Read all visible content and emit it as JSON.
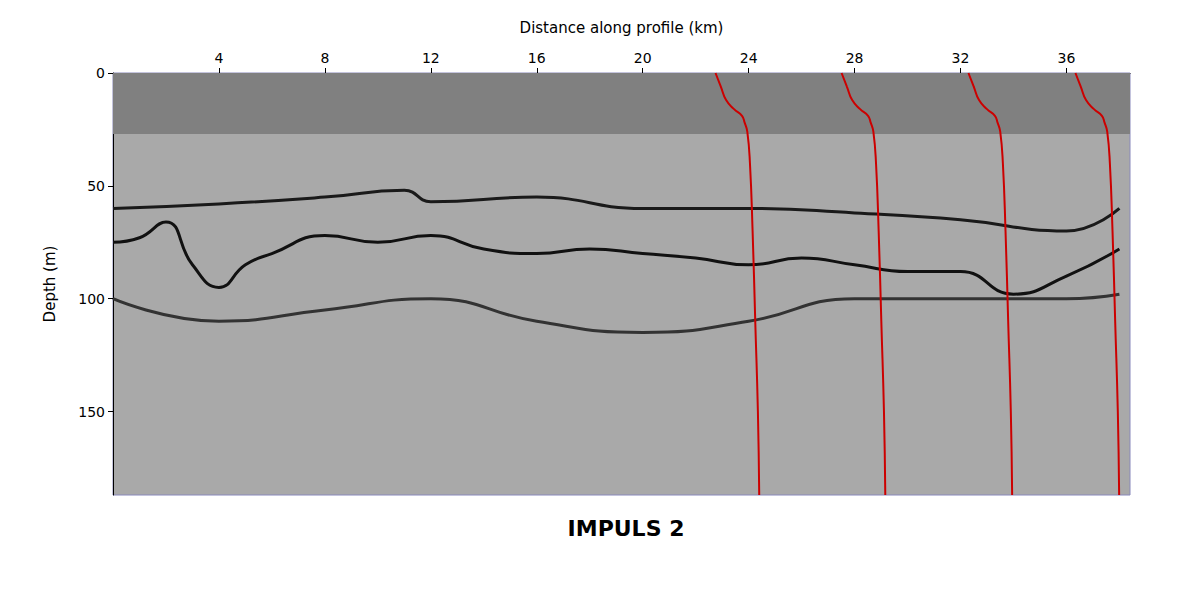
{
  "chart_data": {
    "type": "line",
    "title": "IMPULS 2",
    "x_label": "Distance along profile (km)",
    "y_label": "Depth (m)",
    "xlim": [
      0,
      38.4
    ],
    "xticks": [
      4,
      8,
      12,
      16,
      20,
      24,
      28,
      32,
      36
    ],
    "ylim": [
      187,
      0
    ],
    "yticks": [
      0,
      50,
      100,
      150
    ],
    "grid": false,
    "blank_zone": {
      "ylim": [
        0,
        27
      ],
      "color": "#808080"
    },
    "series": [
      {
        "color": "#cc0000",
        "line_style": "solid",
        "x": [
          22.75,
          22.95,
          23.15,
          23.45,
          23.75,
          23.85,
          23.95,
          24.05,
          24.15,
          24.25,
          24.35,
          24.4
        ],
        "y": [
          0,
          6,
          12,
          16,
          19,
          22,
          26,
          40,
          70,
          110,
          150,
          187
        ]
      },
      {
        "color": "#cc0000",
        "line_style": "solid",
        "x": [
          27.51,
          27.71,
          27.91,
          28.21,
          28.51,
          28.61,
          28.71,
          28.81,
          28.91,
          29.01,
          29.11,
          29.16
        ],
        "y": [
          0,
          6,
          12,
          16,
          19,
          22,
          26,
          40,
          70,
          110,
          150,
          187
        ]
      },
      {
        "color": "#cc0000",
        "line_style": "solid",
        "x": [
          32.3,
          32.5,
          32.7,
          33.0,
          33.3,
          33.4,
          33.5,
          33.6,
          33.7,
          33.8,
          33.9,
          33.95
        ],
        "y": [
          0,
          6,
          12,
          16,
          19,
          22,
          26,
          40,
          70,
          110,
          150,
          187
        ]
      },
      {
        "color": "#cc0000",
        "line_style": "solid",
        "x": [
          36.34,
          36.54,
          36.74,
          37.04,
          37.34,
          37.44,
          37.54,
          37.64,
          37.74,
          37.84,
          37.94,
          37.99
        ],
        "y": [
          0,
          6,
          12,
          16,
          19,
          22,
          26,
          40,
          70,
          110,
          150,
          187
        ]
      },
      {
        "color": "#1a1a1a",
        "line_style": "solid",
        "x": [
          0,
          4,
          8,
          11,
          12,
          16,
          20,
          24,
          28,
          32,
          36,
          38
        ],
        "y": [
          60,
          58,
          55,
          52,
          57,
          55,
          60,
          60,
          62,
          65,
          70,
          60
        ]
      },
      {
        "color": "#111111",
        "line_style": "solid",
        "x": [
          0,
          1,
          2,
          3,
          4,
          5,
          6,
          8,
          10,
          12,
          14,
          16,
          18,
          20,
          22,
          24,
          26,
          28,
          30,
          32,
          34,
          36,
          38
        ],
        "y": [
          75,
          73,
          66,
          85,
          95,
          85,
          80,
          72,
          75,
          72,
          78,
          80,
          78,
          80,
          82,
          85,
          82,
          85,
          88,
          88,
          98,
          90,
          78
        ]
      },
      {
        "color": "#333333",
        "line_style": "solid",
        "x": [
          0,
          4,
          8,
          12,
          16,
          20,
          24,
          28,
          32,
          36,
          38
        ],
        "y": [
          100,
          110,
          105,
          100,
          110,
          115,
          110,
          100,
          100,
          100,
          98
        ]
      }
    ]
  }
}
